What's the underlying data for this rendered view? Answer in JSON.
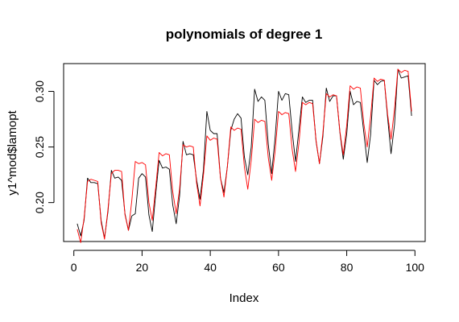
{
  "chart_data": {
    "type": "line",
    "title": "polynomials of degree 1",
    "xlabel": "Index",
    "ylabel": "y1^mod$lamopt",
    "xlim": [
      0,
      100
    ],
    "ylim": [
      0.165,
      0.325
    ],
    "x_ticks": [
      0,
      20,
      40,
      60,
      80,
      100
    ],
    "y_ticks": [
      0.2,
      0.25,
      0.3
    ],
    "x_tick_labels": [
      "0",
      "20",
      "40",
      "60",
      "80",
      "100"
    ],
    "y_tick_labels": [
      "0.20",
      "0.25",
      "0.30"
    ],
    "grid": false,
    "legend": "none",
    "series": [
      {
        "color": "#000000",
        "x": [
          1,
          2,
          3,
          4,
          5,
          6,
          7,
          8,
          9,
          10,
          11,
          12,
          13,
          14,
          15,
          16,
          17,
          18,
          19,
          20,
          21,
          22,
          23,
          24,
          25,
          26,
          27,
          28,
          29,
          30,
          31,
          32,
          33,
          34,
          35,
          36,
          37,
          38,
          39,
          40,
          41,
          42,
          43,
          44,
          45,
          46,
          47,
          48,
          49,
          50,
          51,
          52,
          53,
          54,
          55,
          56,
          57,
          58,
          59,
          60,
          61,
          62,
          63,
          64,
          65,
          66,
          67,
          68,
          69,
          70,
          71,
          72,
          73,
          74,
          75,
          76,
          77,
          78,
          79,
          80,
          81,
          82,
          83,
          84,
          85,
          86,
          87,
          88,
          89,
          90,
          91,
          92,
          93,
          94,
          95,
          96,
          97,
          98,
          99
        ],
        "values": [
          0.181,
          0.17,
          0.184,
          0.222,
          0.218,
          0.218,
          0.217,
          0.184,
          0.168,
          0.192,
          0.229,
          0.222,
          0.223,
          0.22,
          0.19,
          0.175,
          0.188,
          0.19,
          0.222,
          0.226,
          0.223,
          0.189,
          0.174,
          0.208,
          0.238,
          0.231,
          0.232,
          0.23,
          0.198,
          0.181,
          0.206,
          0.255,
          0.243,
          0.244,
          0.243,
          0.22,
          0.203,
          0.23,
          0.282,
          0.265,
          0.262,
          0.262,
          0.222,
          0.209,
          0.232,
          0.265,
          0.275,
          0.28,
          0.276,
          0.241,
          0.225,
          0.25,
          0.302,
          0.291,
          0.295,
          0.292,
          0.252,
          0.226,
          0.258,
          0.3,
          0.292,
          0.298,
          0.297,
          0.264,
          0.237,
          0.266,
          0.295,
          0.29,
          0.292,
          0.292,
          0.255,
          0.235,
          0.259,
          0.303,
          0.291,
          0.296,
          0.296,
          0.263,
          0.239,
          0.262,
          0.3,
          0.288,
          0.291,
          0.29,
          0.263,
          0.236,
          0.261,
          0.31,
          0.306,
          0.309,
          0.31,
          0.276,
          0.244,
          0.27,
          0.32,
          0.312,
          0.313,
          0.314,
          0.278
        ]
      },
      {
        "color": "#ff0000",
        "x": [
          1,
          2,
          3,
          4,
          5,
          6,
          7,
          8,
          9,
          10,
          11,
          12,
          13,
          14,
          15,
          16,
          17,
          18,
          19,
          20,
          21,
          22,
          23,
          24,
          25,
          26,
          27,
          28,
          29,
          30,
          31,
          32,
          33,
          34,
          35,
          36,
          37,
          38,
          39,
          40,
          41,
          42,
          43,
          44,
          45,
          46,
          47,
          48,
          49,
          50,
          51,
          52,
          53,
          54,
          55,
          56,
          57,
          58,
          59,
          60,
          61,
          62,
          63,
          64,
          65,
          66,
          67,
          68,
          69,
          70,
          71,
          72,
          73,
          74,
          75,
          76,
          77,
          78,
          79,
          80,
          81,
          82,
          83,
          84,
          85,
          86,
          87,
          88,
          89,
          90,
          91,
          92,
          93,
          94,
          95,
          96,
          97,
          98,
          99
        ],
        "values": [
          0.176,
          0.164,
          0.186,
          0.219,
          0.221,
          0.22,
          0.219,
          0.182,
          0.167,
          0.194,
          0.226,
          0.229,
          0.229,
          0.228,
          0.189,
          0.175,
          0.202,
          0.237,
          0.235,
          0.236,
          0.234,
          0.2,
          0.184,
          0.214,
          0.245,
          0.242,
          0.244,
          0.243,
          0.21,
          0.19,
          0.212,
          0.252,
          0.25,
          0.251,
          0.25,
          0.217,
          0.197,
          0.225,
          0.26,
          0.256,
          0.258,
          0.257,
          0.222,
          0.205,
          0.232,
          0.268,
          0.265,
          0.267,
          0.266,
          0.232,
          0.212,
          0.238,
          0.275,
          0.272,
          0.274,
          0.273,
          0.24,
          0.22,
          0.246,
          0.282,
          0.279,
          0.281,
          0.28,
          0.248,
          0.228,
          0.254,
          0.29,
          0.288,
          0.29,
          0.289,
          0.256,
          0.235,
          0.262,
          0.298,
          0.295,
          0.297,
          0.296,
          0.264,
          0.243,
          0.27,
          0.305,
          0.302,
          0.304,
          0.303,
          0.271,
          0.25,
          0.277,
          0.312,
          0.309,
          0.311,
          0.31,
          0.279,
          0.257,
          0.284,
          0.32,
          0.317,
          0.319,
          0.318,
          0.282
        ]
      }
    ]
  }
}
